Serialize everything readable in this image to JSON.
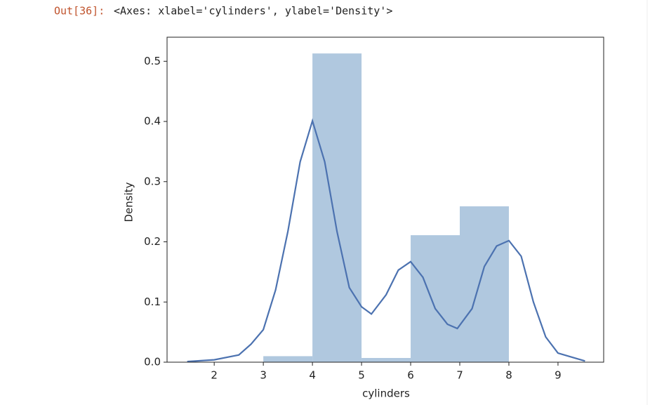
{
  "prompt": "Out[36]:",
  "output_text": "<Axes: xlabel='cylinders', ylabel='Density'>",
  "chart_data": {
    "type": "histogram",
    "xlabel": "cylinders",
    "ylabel": "Density",
    "bins": [
      3,
      4,
      5,
      6,
      7,
      8
    ],
    "values": [
      0.01,
      0.513,
      0.007,
      0.211,
      0.259
    ],
    "color": "#b0c8df",
    "kde": {
      "color": "#4c72b0",
      "x": [
        1.45,
        2.0,
        2.5,
        2.75,
        3.0,
        3.25,
        3.5,
        3.75,
        4.0,
        4.25,
        4.5,
        4.75,
        5.0,
        5.2,
        5.5,
        5.75,
        6.0,
        6.25,
        6.5,
        6.75,
        6.95,
        7.25,
        7.5,
        7.75,
        8.0,
        8.25,
        8.5,
        8.75,
        9.0,
        9.55
      ],
      "values": [
        0.001,
        0.004,
        0.012,
        0.03,
        0.054,
        0.12,
        0.217,
        0.333,
        0.401,
        0.333,
        0.217,
        0.124,
        0.092,
        0.08,
        0.112,
        0.153,
        0.167,
        0.141,
        0.089,
        0.063,
        0.056,
        0.089,
        0.159,
        0.193,
        0.202,
        0.176,
        0.1,
        0.042,
        0.015,
        0.002
      ]
    },
    "xlim": [
      1.04,
      9.93
    ],
    "ylim": [
      0,
      0.54
    ],
    "xticks": [
      2,
      3,
      4,
      5,
      6,
      7,
      8,
      9
    ],
    "yticks": [
      {
        "value": 0,
        "label": "0.0"
      },
      0.1,
      0.2,
      0.3,
      0.4,
      0.5
    ]
  }
}
